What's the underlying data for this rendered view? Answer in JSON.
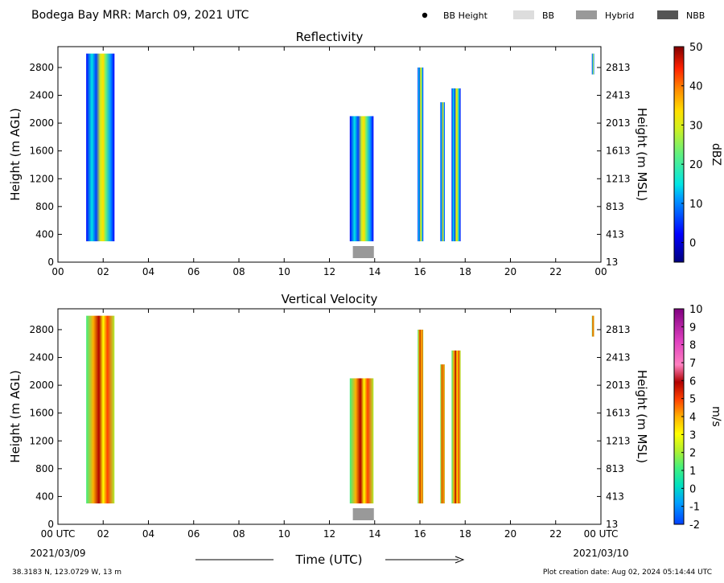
{
  "header": {
    "title": "Bodega Bay MRR:  March 09, 2021 UTC",
    "legend": [
      {
        "label": "BB Height",
        "kind": "dot",
        "color": "#000000"
      },
      {
        "label": "BB",
        "kind": "box",
        "color": "#dddddd"
      },
      {
        "label": "Hybrid",
        "kind": "box",
        "color": "#999999"
      },
      {
        "label": "NBB",
        "kind": "box",
        "color": "#555555"
      }
    ]
  },
  "footer": {
    "location": "38.3183 N, 123.0729 W, 13 m",
    "creation": "Plot creation date: Aug 02, 2024 05:14:44 UTC",
    "xlabel": "Time (UTC)",
    "start_date": "2021/03/09",
    "end_date": "2021/03/10"
  },
  "chart_data": [
    {
      "type": "heatmap",
      "title": "Reflectivity",
      "ylabel": "Height (m AGL)",
      "ylabel_right": "Height (m MSL)",
      "colorbar_label": "dBZ",
      "x_ticks": [
        "00",
        "02",
        "04",
        "06",
        "08",
        "10",
        "12",
        "14",
        "16",
        "18",
        "20",
        "22",
        "00"
      ],
      "xlim": [
        0,
        24
      ],
      "ylim": [
        0,
        3100
      ],
      "y_ticks": [
        0,
        400,
        800,
        1200,
        1600,
        2000,
        2400,
        2800
      ],
      "y_ticks_right": [
        "13",
        "413",
        "813",
        "1213",
        "1613",
        "2013",
        "2413",
        "2813"
      ],
      "colorbar": {
        "range": [
          -5,
          50
        ],
        "ticks": [
          0,
          10,
          20,
          30,
          40,
          50
        ]
      },
      "bb_type_segments": [
        {
          "start": 13.0,
          "end": 14.0,
          "type": "Hybrid"
        }
      ],
      "echo_columns": [
        {
          "start": 1.25,
          "end": 2.5,
          "bottom": 300,
          "top": 3000
        },
        {
          "start": 12.9,
          "end": 13.95,
          "bottom": 300,
          "top": 2100
        },
        {
          "start": 15.9,
          "end": 16.15,
          "bottom": 300,
          "top": 2800
        },
        {
          "start": 16.9,
          "end": 17.1,
          "bottom": 300,
          "top": 2300
        },
        {
          "start": 17.4,
          "end": 17.8,
          "bottom": 300,
          "top": 2500
        },
        {
          "start": 23.6,
          "end": 23.7,
          "bottom": 2700,
          "top": 3000
        }
      ]
    },
    {
      "type": "heatmap",
      "title": "Vertical Velocity",
      "ylabel": "Height (m AGL)",
      "ylabel_right": "Height (m MSL)",
      "colorbar_label": "m/s",
      "x_ticks": [
        "00 UTC",
        "02",
        "04",
        "06",
        "08",
        "10",
        "12",
        "14",
        "16",
        "18",
        "20",
        "22",
        "00 UTC"
      ],
      "xlim": [
        0,
        24
      ],
      "ylim": [
        0,
        3100
      ],
      "y_ticks": [
        0,
        400,
        800,
        1200,
        1600,
        2000,
        2400,
        2800
      ],
      "y_ticks_right": [
        "13",
        "413",
        "813",
        "1213",
        "1613",
        "2013",
        "2413",
        "2813"
      ],
      "colorbar": {
        "range": [
          -2,
          10
        ],
        "ticks": [
          -2,
          -1,
          0,
          1,
          2,
          3,
          4,
          5,
          6,
          7,
          8,
          9,
          10
        ]
      },
      "bb_type_segments": [
        {
          "start": 13.0,
          "end": 14.0,
          "type": "Hybrid"
        }
      ],
      "echo_columns": [
        {
          "start": 1.25,
          "end": 2.5,
          "bottom": 300,
          "top": 3000
        },
        {
          "start": 12.9,
          "end": 13.95,
          "bottom": 300,
          "top": 2100
        },
        {
          "start": 15.9,
          "end": 16.15,
          "bottom": 300,
          "top": 2800
        },
        {
          "start": 16.9,
          "end": 17.1,
          "bottom": 300,
          "top": 2300
        },
        {
          "start": 17.4,
          "end": 17.8,
          "bottom": 300,
          "top": 2500
        },
        {
          "start": 23.6,
          "end": 23.7,
          "bottom": 2700,
          "top": 3000
        }
      ]
    }
  ]
}
